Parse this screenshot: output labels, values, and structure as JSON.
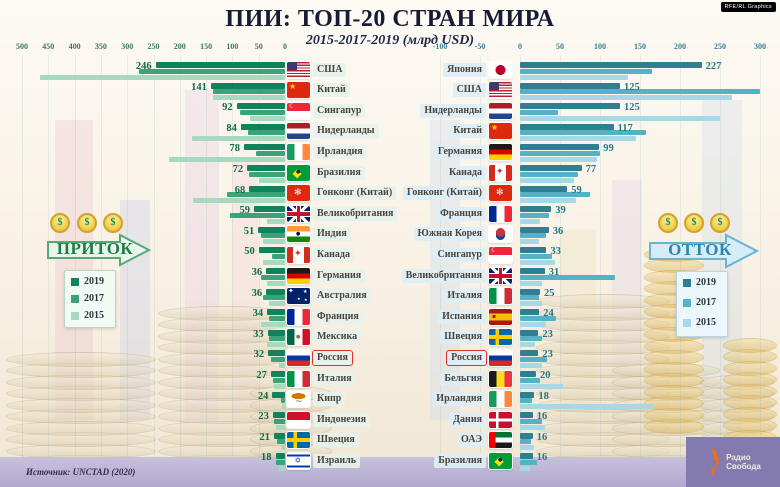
{
  "header": {
    "title": "ПИИ: ТОП-20 СТРАН МИРА",
    "subtitle": "2015-2017-2019 (млрд USD)"
  },
  "annotations": {
    "inflow_label": "ПРИТОК",
    "outflow_label": "ОТТОК",
    "coin_symbol": "$",
    "highlighted_country": "Россия"
  },
  "footer": {
    "source": "Источник: UNCTAD (2020)",
    "credit": "RFE/RL Graphics",
    "logo_line1": "Радио",
    "logo_line2": "Свобода"
  },
  "chart_data": [
    {
      "type": "bar",
      "orientation": "horizontal-right-to-left",
      "title": "ПРИТОК",
      "unit": "млрд USD",
      "years": [
        "2019",
        "2017",
        "2015"
      ],
      "colors": {
        "2019": "#10835c",
        "2017": "#3aa377",
        "2015": "#a6d9c0"
      },
      "axis_ticks": [
        500,
        450,
        400,
        350,
        300,
        250,
        200,
        150,
        100,
        50,
        0
      ],
      "xlim": [
        500,
        0
      ],
      "legend_position": "left-middle",
      "rows": [
        {
          "country": "США",
          "flag": "us",
          "values": {
            "2019": 246,
            "2017": 277,
            "2015": 465
          }
        },
        {
          "country": "Китай",
          "flag": "cn",
          "values": {
            "2019": 141,
            "2017": 136,
            "2015": 136
          }
        },
        {
          "country": "Сингапур",
          "flag": "sg",
          "values": {
            "2019": 92,
            "2017": 85,
            "2015": 66
          }
        },
        {
          "country": "Нидерланды",
          "flag": "nl",
          "values": {
            "2019": 84,
            "2017": 70,
            "2015": 177
          }
        },
        {
          "country": "Ирландия",
          "flag": "ie",
          "values": {
            "2019": 78,
            "2017": 55,
            "2015": 220
          }
        },
        {
          "country": "Бразилия",
          "flag": "br",
          "values": {
            "2019": 72,
            "2017": 68,
            "2015": 50
          }
        },
        {
          "country": "Гонконг (Китай)",
          "flag": "hk",
          "values": {
            "2019": 68,
            "2017": 110,
            "2015": 174
          }
        },
        {
          "country": "Великобритания",
          "flag": "gb",
          "values": {
            "2019": 59,
            "2017": 105,
            "2015": 34
          }
        },
        {
          "country": "Индия",
          "flag": "in",
          "values": {
            "2019": 51,
            "2017": 45,
            "2015": 42
          }
        },
        {
          "country": "Канада",
          "flag": "ca",
          "values": {
            "2019": 50,
            "2017": 25,
            "2015": 42
          }
        },
        {
          "country": "Германия",
          "flag": "de",
          "values": {
            "2019": 36,
            "2017": 45,
            "2015": 34
          }
        },
        {
          "country": "Австралия",
          "flag": "au",
          "values": {
            "2019": 36,
            "2017": 42,
            "2015": 30
          }
        },
        {
          "country": "Франция",
          "flag": "fr",
          "values": {
            "2019": 34,
            "2017": 30,
            "2015": 45
          }
        },
        {
          "country": "Мексика",
          "flag": "mx",
          "values": {
            "2019": 33,
            "2017": 31,
            "2015": 35
          }
        },
        {
          "country": "Россия",
          "flag": "ru",
          "highlight": true,
          "values": {
            "2019": 32,
            "2017": 26,
            "2015": 12
          }
        },
        {
          "country": "Италия",
          "flag": "it",
          "values": {
            "2019": 27,
            "2017": 22,
            "2015": 20
          }
        },
        {
          "country": "Кипр",
          "flag": "cy",
          "values": {
            "2019": 24,
            "2017": 8,
            "2015": 5
          }
        },
        {
          "country": "Индонезия",
          "flag": "id",
          "values": {
            "2019": 23,
            "2017": 21,
            "2015": 17
          }
        },
        {
          "country": "Швеция",
          "flag": "se",
          "values": {
            "2019": 21,
            "2017": 15,
            "2015": 8
          }
        },
        {
          "country": "Израиль",
          "flag": "il",
          "values": {
            "2019": 18,
            "2017": 17,
            "2015": 12
          }
        }
      ]
    },
    {
      "type": "bar",
      "orientation": "horizontal-left-to-right",
      "title": "ОТТОК",
      "unit": "млрд USD",
      "years": [
        "2019",
        "2017",
        "2015"
      ],
      "colors": {
        "2019": "#2f7f92",
        "2017": "#57b1c5",
        "2015": "#a7d8e5"
      },
      "axis_ticks": [
        -100,
        -50,
        0,
        50,
        100,
        150,
        200,
        250,
        300
      ],
      "xlim": [
        -100,
        300
      ],
      "legend_position": "right-middle",
      "rows": [
        {
          "country": "Япония",
          "flag": "jp",
          "values": {
            "2019": 227,
            "2017": 165,
            "2015": 135
          }
        },
        {
          "country": "США",
          "flag": "us",
          "values": {
            "2019": 125,
            "2017": 300,
            "2015": 265
          }
        },
        {
          "country": "Нидерланды",
          "flag": "nl",
          "values": {
            "2019": 125,
            "2017": 48,
            "2015": 250
          }
        },
        {
          "country": "Китай",
          "flag": "cn",
          "values": {
            "2019": 117,
            "2017": 158,
            "2015": 145
          }
        },
        {
          "country": "Германия",
          "flag": "de",
          "values": {
            "2019": 99,
            "2017": 100,
            "2015": 96
          }
        },
        {
          "country": "Канада",
          "flag": "ca",
          "values": {
            "2019": 77,
            "2017": 73,
            "2015": 67
          }
        },
        {
          "country": "Гонконг (Китай)",
          "flag": "hk",
          "values": {
            "2019": 59,
            "2017": 87,
            "2015": 70
          }
        },
        {
          "country": "Франция",
          "flag": "fr",
          "values": {
            "2019": 39,
            "2017": 36,
            "2015": 25
          }
        },
        {
          "country": "Южная Корея",
          "flag": "kr",
          "values": {
            "2019": 36,
            "2017": 32,
            "2015": 24
          }
        },
        {
          "country": "Сингапур",
          "flag": "sg",
          "values": {
            "2019": 33,
            "2017": 40,
            "2015": 44
          }
        },
        {
          "country": "Великобритания",
          "flag": "gb",
          "values": {
            "2019": 31,
            "2017": 119,
            "2015": 27
          }
        },
        {
          "country": "Италия",
          "flag": "it",
          "values": {
            "2019": 25,
            "2017": 24,
            "2015": 28
          }
        },
        {
          "country": "Испания",
          "flag": "es",
          "values": {
            "2019": 24,
            "2017": 45,
            "2015": 33
          }
        },
        {
          "country": "Швеция",
          "flag": "se",
          "values": {
            "2019": 23,
            "2017": 27,
            "2015": 19
          }
        },
        {
          "country": "Россия",
          "flag": "ru",
          "highlight": true,
          "values": {
            "2019": 23,
            "2017": 34,
            "2015": 27
          }
        },
        {
          "country": "Бельгия",
          "flag": "be",
          "values": {
            "2019": 20,
            "2017": 25,
            "2015": 54
          }
        },
        {
          "country": "Ирландия",
          "flag": "ie",
          "values": {
            "2019": 18,
            "2017": 15,
            "2015": 168
          }
        },
        {
          "country": "Дания",
          "flag": "dk",
          "values": {
            "2019": 16,
            "2017": 28,
            "2015": 31
          }
        },
        {
          "country": "ОАЭ",
          "flag": "ae",
          "values": {
            "2019": 16,
            "2017": 14,
            "2015": 17
          }
        },
        {
          "country": "Бразилия",
          "flag": "br",
          "values": {
            "2019": 16,
            "2017": 21,
            "2015": 13
          }
        }
      ]
    }
  ]
}
